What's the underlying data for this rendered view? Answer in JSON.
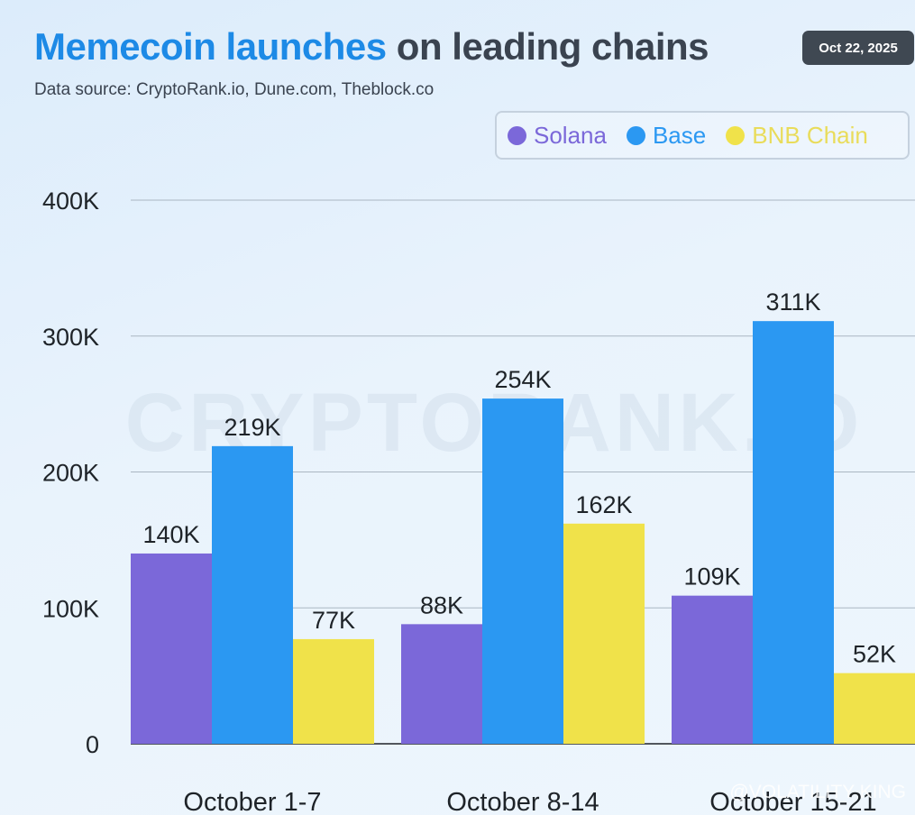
{
  "header": {
    "title_highlight": "Memecoin launches",
    "title_rest": "on leading chains",
    "subtitle": "Data source: CryptoRank.io, Dune.com, Theblock.co",
    "date": "Oct 22, 2025"
  },
  "colors": {
    "title_accent": "#1d8ae6",
    "solana": "#7b68d9",
    "base": "#2b98f2",
    "bnb": "#f0e24a",
    "bnb_legend_text": "#e9dc5a"
  },
  "watermark": {
    "text": "CRYPTORANK.IO",
    "credit": "@VOLATILITY KING"
  },
  "chart_data": {
    "type": "bar",
    "title": "Memecoin launches on leading chains",
    "categories": [
      "October 1-7",
      "October 8-14",
      "October 15-21"
    ],
    "series": [
      {
        "name": "Solana",
        "values": [
          140,
          88,
          109
        ],
        "labels": [
          "140K",
          "88K",
          "109K"
        ]
      },
      {
        "name": "Base",
        "values": [
          219,
          254,
          311
        ],
        "labels": [
          "219K",
          "254K",
          "311K"
        ]
      },
      {
        "name": "BNB Chain",
        "values": [
          77,
          162,
          52
        ],
        "labels": [
          "77K",
          "162K",
          "52K"
        ]
      }
    ],
    "unit": "K",
    "ylim": [
      0,
      400
    ],
    "yticks": [
      0,
      100,
      200,
      300,
      400
    ],
    "ytick_labels": [
      "0",
      "100K",
      "200K",
      "300K",
      "400K"
    ],
    "grid": true,
    "legend_position": "top-right"
  }
}
